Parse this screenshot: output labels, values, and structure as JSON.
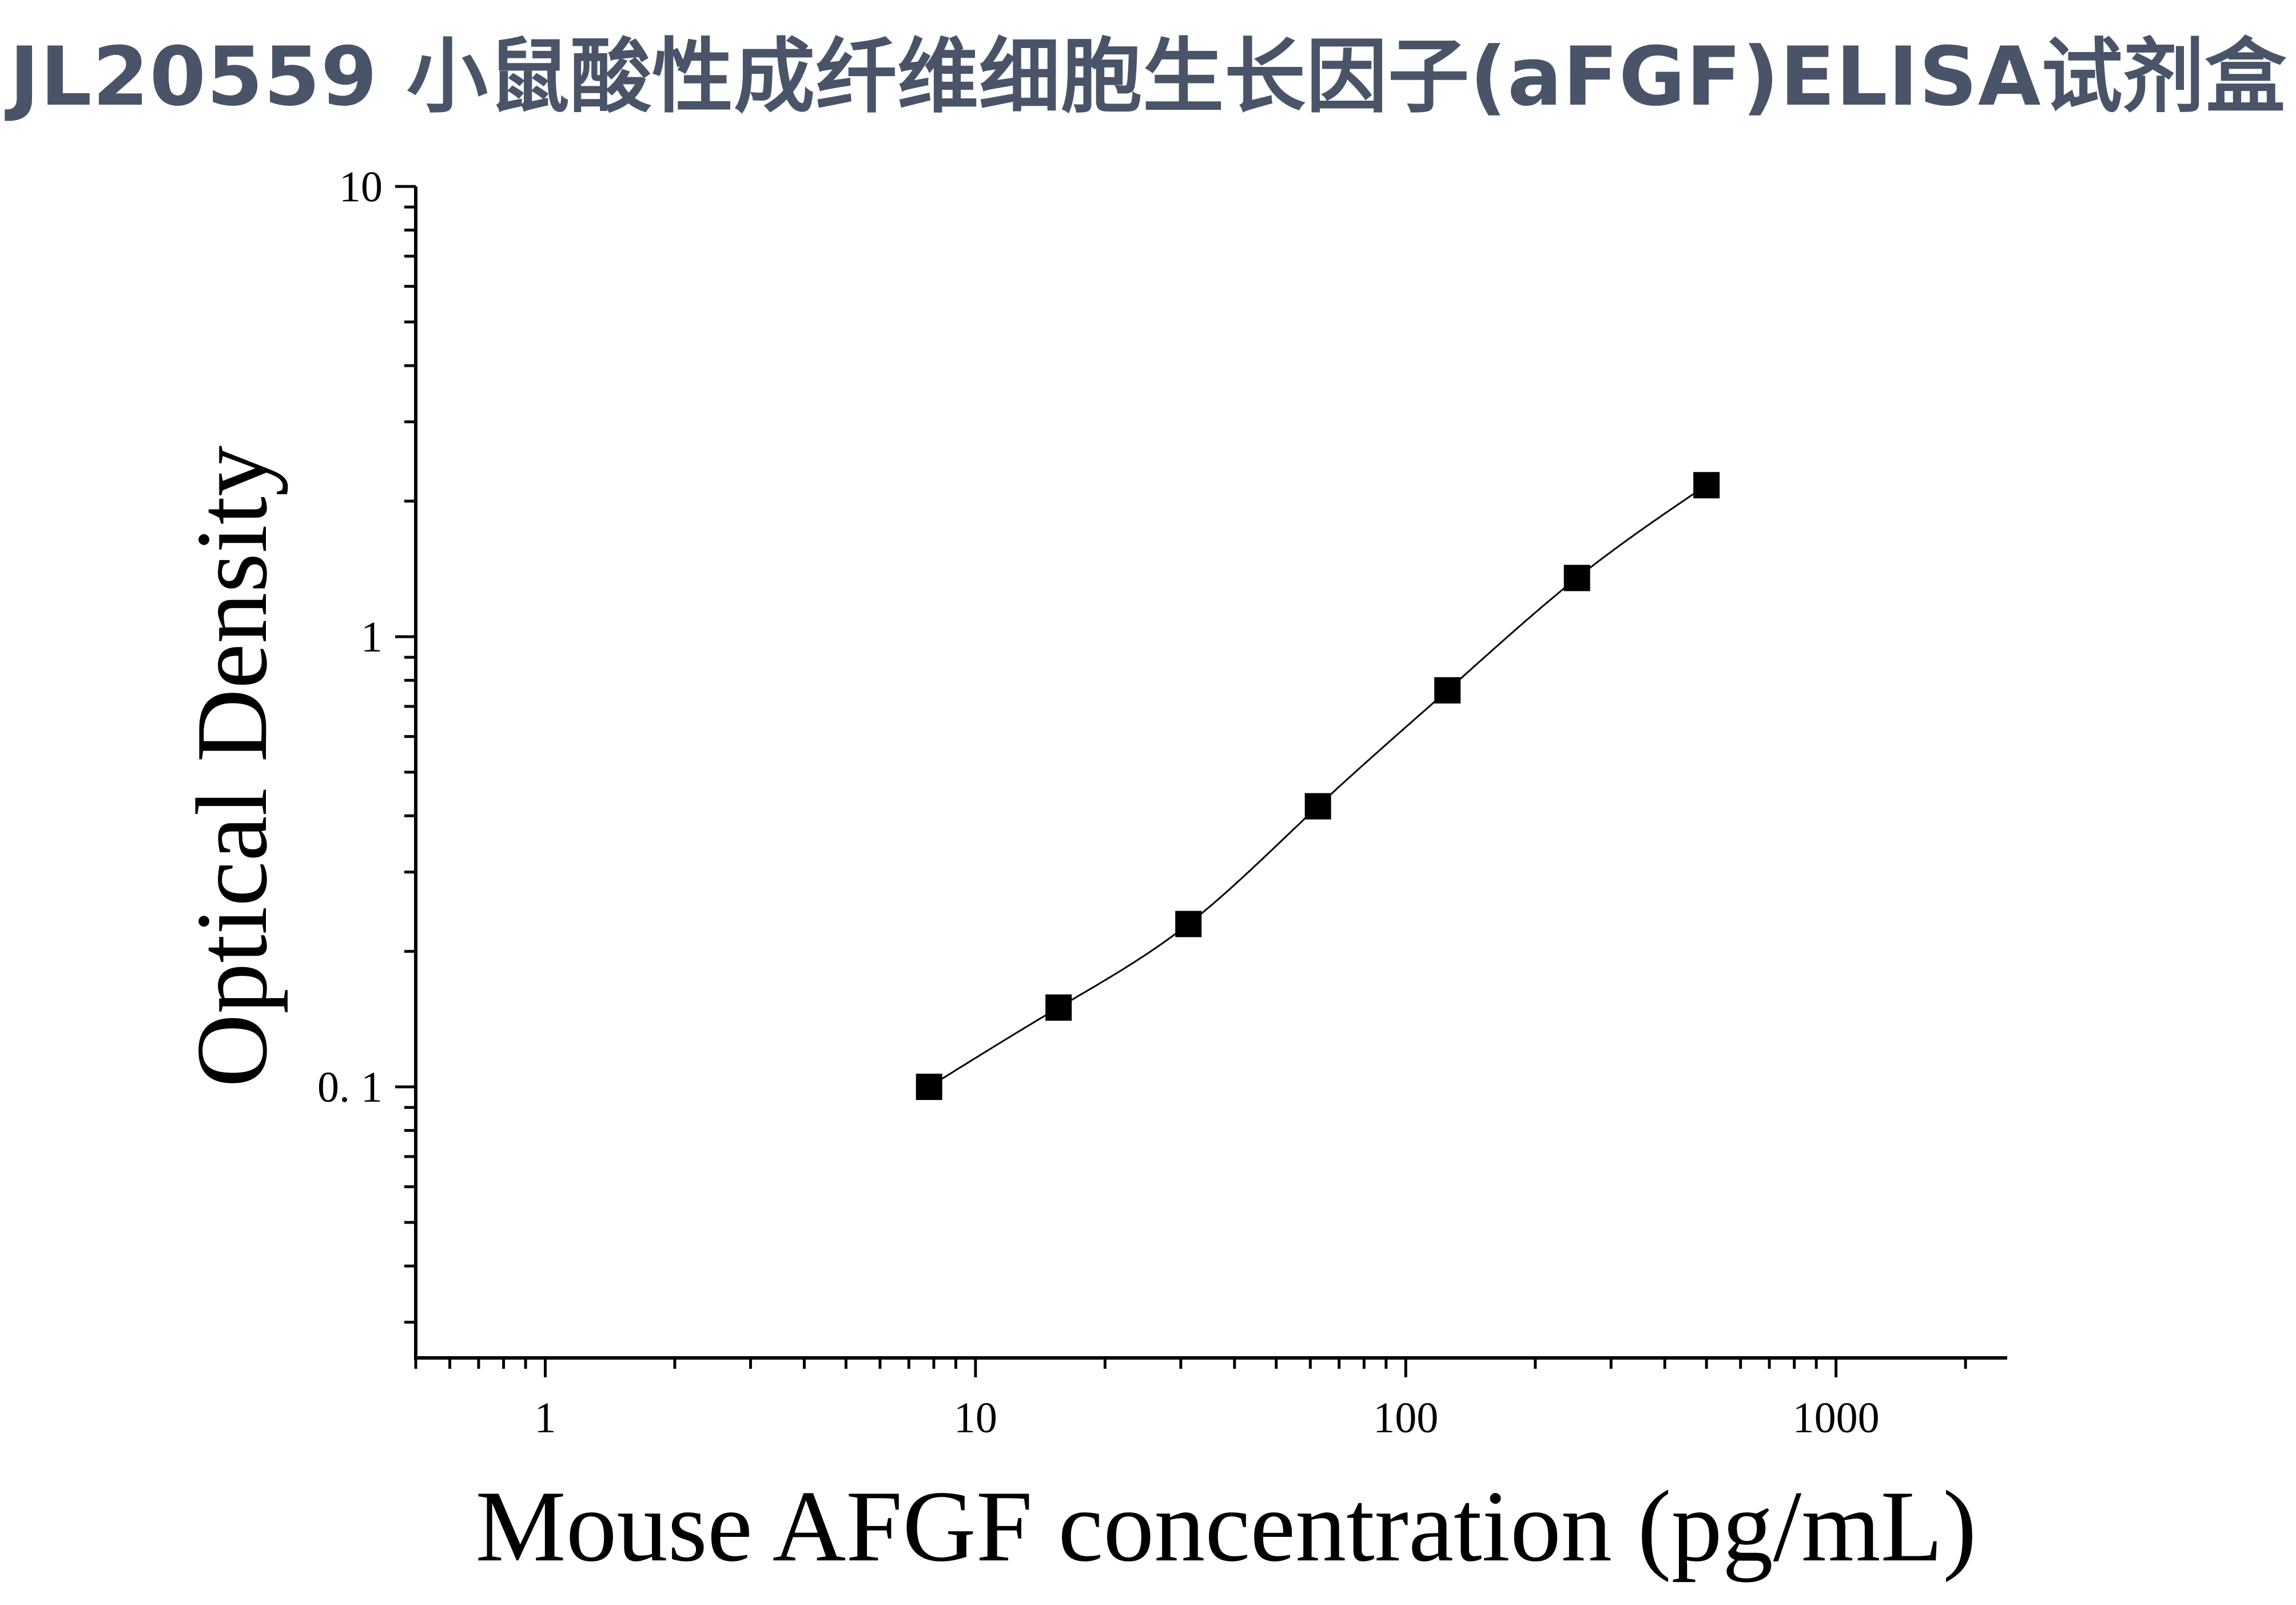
{
  "chart_data": {
    "type": "scatter",
    "title": "JL20559 小鼠酸性成纤维细胞生长因子(aFGF)ELISA试剂盒",
    "xlabel": "Mouse AFGF concentration (pg/mL)",
    "ylabel": "Optical Density",
    "x_scale": "log",
    "y_scale": "log",
    "xlim": [
      0.5,
      2500
    ],
    "ylim": [
      0.025,
      10
    ],
    "x_ticks": [
      1,
      10,
      100,
      1000
    ],
    "x_tick_labels": [
      "1",
      "10",
      "100",
      "1000"
    ],
    "y_ticks": [
      0.1,
      1,
      10
    ],
    "y_tick_labels": [
      "0. 1",
      "1",
      "10"
    ],
    "grid": false,
    "marker": "square",
    "fit_curve": true,
    "series": [
      {
        "x": [
          7.8,
          15.6,
          31.25,
          62.5,
          125,
          250,
          500
        ],
        "y": [
          0.1,
          0.15,
          0.23,
          0.42,
          0.76,
          1.35,
          2.17
        ]
      }
    ]
  }
}
